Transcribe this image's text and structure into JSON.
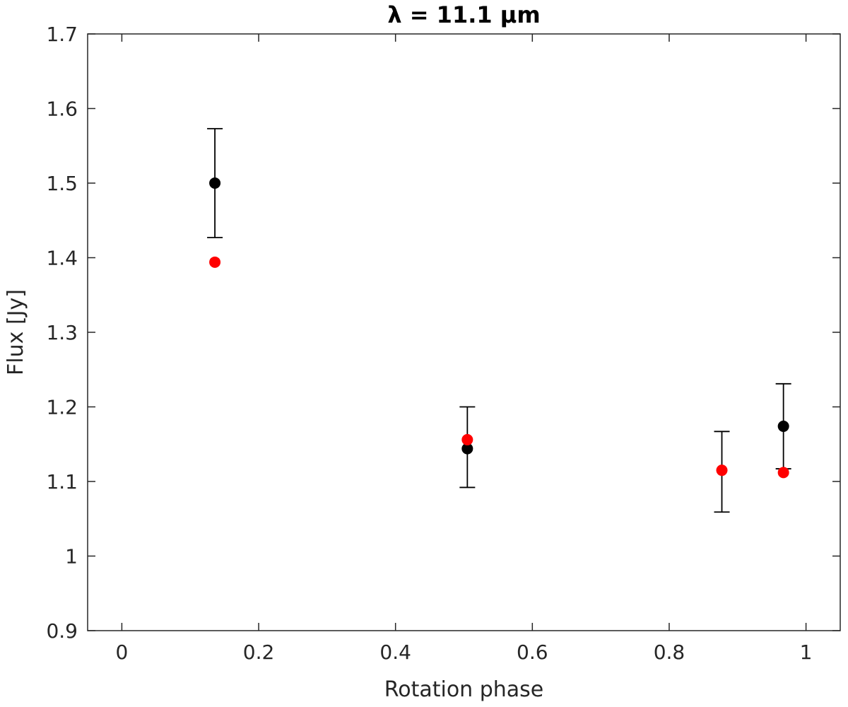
{
  "chart_data": {
    "type": "scatter",
    "title": "λ = 11.1 μm",
    "xlabel": "Rotation phase",
    "ylabel": "Flux [Jy]",
    "xlim": [
      -0.05,
      1.05
    ],
    "ylim": [
      0.9,
      1.7
    ],
    "xticks": [
      0,
      0.2,
      0.4,
      0.6,
      0.8,
      1
    ],
    "xtick_labels": [
      "0",
      "0.2",
      "0.4",
      "0.6",
      "0.8",
      "1"
    ],
    "yticks": [
      0.9,
      1.0,
      1.1,
      1.2,
      1.3,
      1.4,
      1.5,
      1.6,
      1.7
    ],
    "ytick_labels": [
      "0.9",
      "1",
      "1.1",
      "1.2",
      "1.3",
      "1.4",
      "1.5",
      "1.6",
      "1.7"
    ],
    "grid": false,
    "series": [
      {
        "color": "#000000",
        "points": [
          {
            "x": 0.136,
            "y": 1.5,
            "err_low": 1.427,
            "err_high": 1.573
          },
          {
            "x": 0.505,
            "y": 1.144,
            "err_low": 1.092,
            "err_high": 1.2
          },
          {
            "x": 0.877,
            "y": null,
            "err_low": 1.059,
            "err_high": 1.167
          },
          {
            "x": 0.967,
            "y": 1.174,
            "err_low": 1.117,
            "err_high": 1.231
          }
        ]
      },
      {
        "color": "#ff0000",
        "points": [
          {
            "x": 0.136,
            "y": 1.394
          },
          {
            "x": 0.505,
            "y": 1.156
          },
          {
            "x": 0.877,
            "y": 1.115
          },
          {
            "x": 0.967,
            "y": 1.112
          }
        ]
      }
    ]
  }
}
